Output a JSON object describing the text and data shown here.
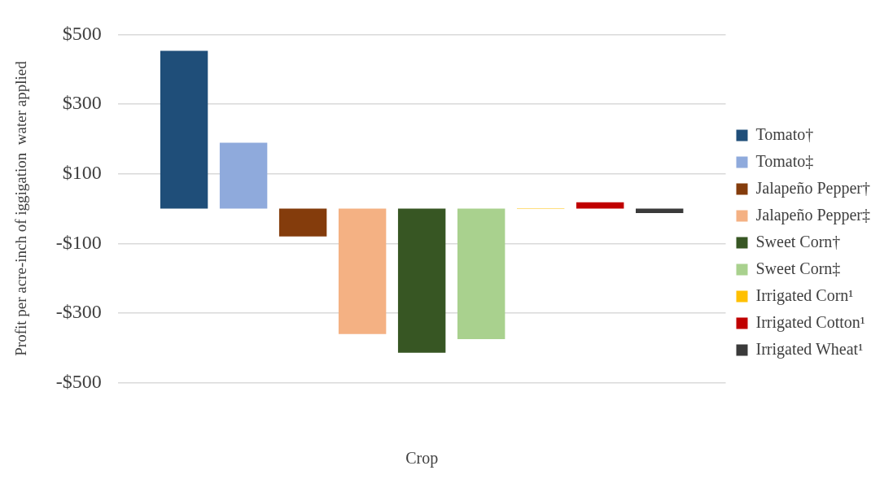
{
  "chart_data": {
    "type": "bar",
    "xlabel": "Crop",
    "ylabel": "Profit per acre-inch of iggigation  water applied",
    "categories": [
      null
    ],
    "series": [
      {
        "name": "Tomato†",
        "color": "#1f4e79",
        "values": [
          453
        ]
      },
      {
        "name": "Tomato‡",
        "color": "#8faadc",
        "values": [
          189
        ]
      },
      {
        "name": "Jalapeño Pepper†",
        "color": "#843c0c",
        "values": [
          -80
        ]
      },
      {
        "name": "Jalapeño Pepper‡",
        "color": "#f4b183",
        "values": [
          -360
        ]
      },
      {
        "name": "Sweet Corn†",
        "color": "#375623",
        "values": [
          -414
        ]
      },
      {
        "name": "Sweet Corn‡",
        "color": "#a9d18e",
        "values": [
          -375
        ]
      },
      {
        "name": "Irrigated Corn¹",
        "color": "#ffc000",
        "values": [
          1
        ]
      },
      {
        "name": "Irrigated Cotton¹",
        "color": "#c00000",
        "values": [
          18
        ]
      },
      {
        "name": "Irrigated Wheat¹",
        "color": "#3a3a3a",
        "values": [
          -13
        ]
      }
    ],
    "ylim": [
      -500,
      500
    ],
    "yticks": [
      {
        "value": -500,
        "label": "-$500"
      },
      {
        "value": -300,
        "label": "-$300"
      },
      {
        "value": -100,
        "label": "-$100"
      },
      {
        "value": 100,
        "label": "$100"
      },
      {
        "value": 300,
        "label": "$300"
      },
      {
        "value": 500,
        "label": "$500"
      }
    ],
    "grid": "y",
    "legend": "right"
  }
}
